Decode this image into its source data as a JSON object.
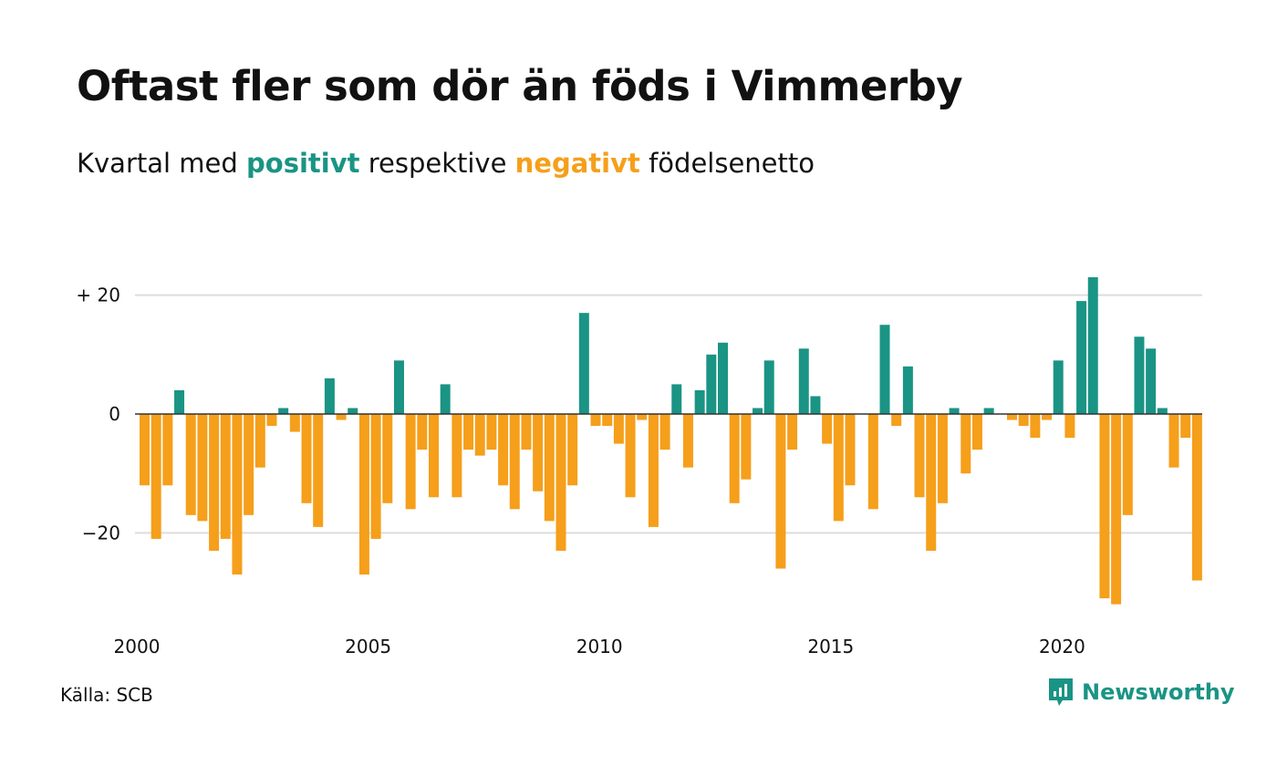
{
  "title": "Oftast fler som dör än föds i Vimmerby",
  "subtitle": {
    "prefix": "Kvartal med",
    "positive": "positivt",
    "middle": "respektive",
    "negative": "negativt",
    "suffix": "födelsenetto"
  },
  "source": "Källa: SCB",
  "brand": "Newsworthy",
  "colors": {
    "positive": "#1a9484",
    "negative": "#f59f1b",
    "grid": "#dddddd",
    "zero": "#333333"
  },
  "chart_data": {
    "type": "bar",
    "title": "Oftast fler som dör än föds i Vimmerby",
    "x_start": "2000 Q1",
    "frequency": "quarterly",
    "values": [
      -12,
      -21,
      -12,
      4,
      -17,
      -18,
      -23,
      -21,
      -27,
      -17,
      -9,
      -2,
      1,
      -3,
      -15,
      -19,
      6,
      -1,
      1,
      -27,
      -21,
      -15,
      9,
      -16,
      -6,
      -14,
      5,
      -14,
      -6,
      -7,
      -6,
      -12,
      -16,
      -6,
      -13,
      -18,
      -23,
      -12,
      17,
      -2,
      -2,
      -5,
      -14,
      -1,
      -19,
      -6,
      5,
      -9,
      4,
      10,
      12,
      -15,
      -11,
      1,
      9,
      -26,
      -6,
      11,
      3,
      -5,
      -18,
      -12,
      0,
      -16,
      15,
      -2,
      8,
      -14,
      -23,
      -15,
      1,
      -10,
      -6,
      1,
      0,
      -1,
      -2,
      -4,
      -1,
      9,
      -4,
      19,
      23,
      -31,
      -32,
      -17,
      13,
      11,
      1,
      -9,
      -4,
      -28
    ],
    "yticks": [
      20,
      0,
      -20
    ],
    "ytick_labels": [
      "+ 20",
      "0",
      "−20"
    ],
    "xticks": [
      2000,
      2005,
      2010,
      2015,
      2020
    ],
    "xtick_labels": [
      "2000",
      "2005",
      "2010",
      "2015",
      "2020"
    ],
    "ylim": [
      -33,
      25
    ],
    "grid": true
  }
}
